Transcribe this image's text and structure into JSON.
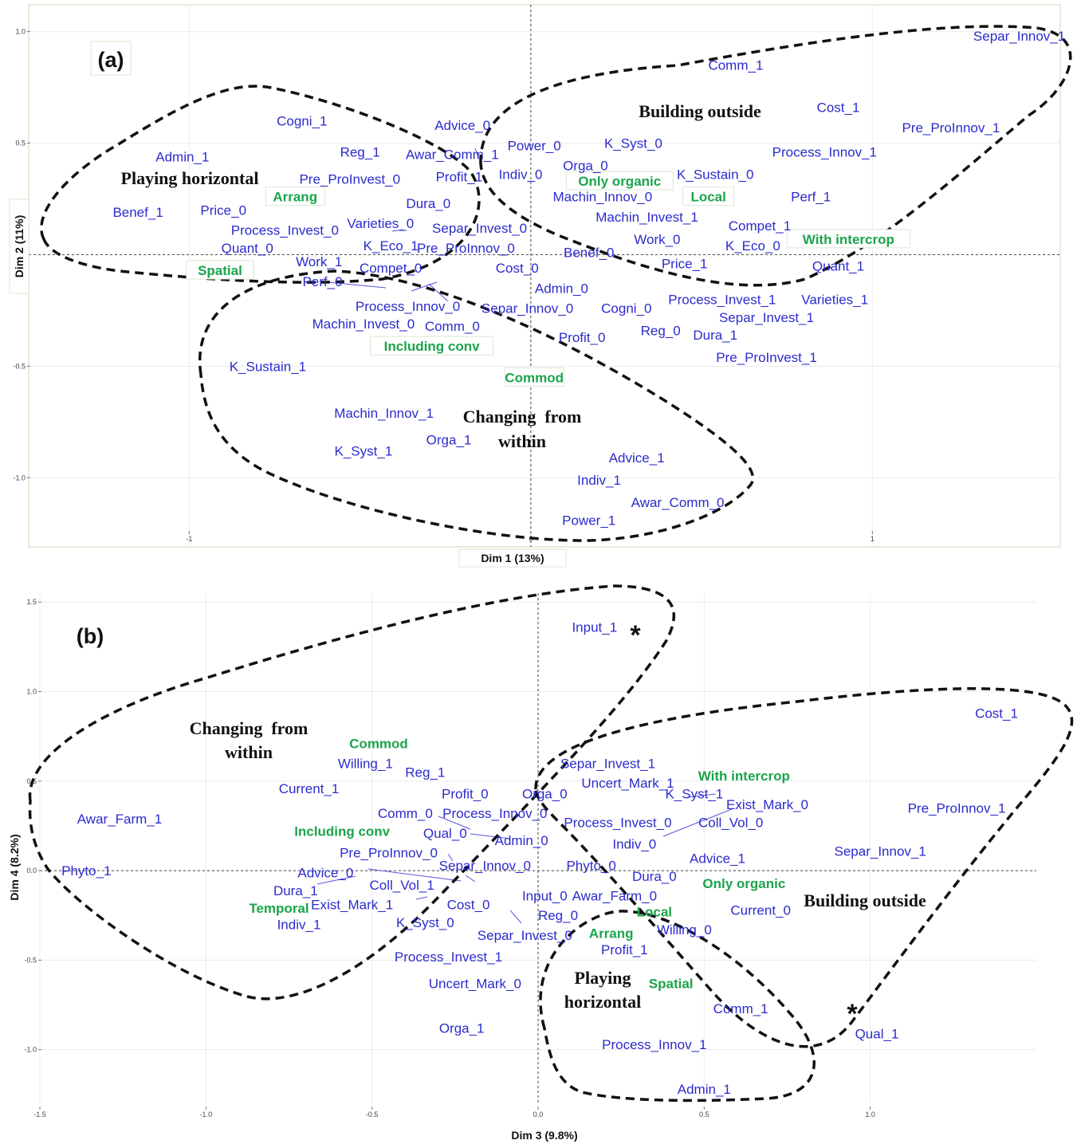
{
  "chart_data": [
    {
      "type": "scatter",
      "panel_label": "(a)",
      "xlabel": "Dim 1 (13%)",
      "ylabel": "Dim 2 (11%)",
      "xlim": [
        -1.47,
        1.55
      ],
      "ylim": [
        -1.31,
        1.12
      ],
      "xticks": [
        {
          "v": -1,
          "label": "-1"
        },
        {
          "v": 0,
          "label": "0"
        },
        {
          "v": 1,
          "label": "1"
        }
      ],
      "yticks": [
        {
          "v": 1.0,
          "label": "1.0"
        },
        {
          "v": 0.5,
          "label": "0.5"
        },
        {
          "v": 0.0,
          "label": "0.0"
        },
        {
          "v": -0.5,
          "label": "-0.5"
        },
        {
          "v": -1.0,
          "label": "-1.0"
        }
      ],
      "grid": true,
      "colors": {
        "active": "#2b2bcc",
        "supplementary": "#1aa44a"
      },
      "active_points": [
        {
          "label": "Separ_Innov_1",
          "x": 1.43,
          "y": 0.98
        },
        {
          "label": "Comm_1",
          "x": 0.6,
          "y": 0.85
        },
        {
          "label": "Cost_1",
          "x": 0.9,
          "y": 0.66
        },
        {
          "label": "Pre_ProInnov_1",
          "x": 1.23,
          "y": 0.57
        },
        {
          "label": "Process_Innov_1",
          "x": 0.86,
          "y": 0.46
        },
        {
          "label": "Cogni_1",
          "x": -0.67,
          "y": 0.6
        },
        {
          "label": "Advice_0",
          "x": -0.2,
          "y": 0.58
        },
        {
          "label": "Power_0",
          "x": 0.01,
          "y": 0.49
        },
        {
          "label": "K_Syst_0",
          "x": 0.3,
          "y": 0.5
        },
        {
          "label": "Admin_1",
          "x": -1.02,
          "y": 0.44
        },
        {
          "label": "Reg_1",
          "x": -0.5,
          "y": 0.46
        },
        {
          "label": "Awar_Comm_1",
          "x": -0.23,
          "y": 0.45
        },
        {
          "label": "Orga_0",
          "x": 0.16,
          "y": 0.4
        },
        {
          "label": "K_Sustain_0",
          "x": 0.54,
          "y": 0.36
        },
        {
          "label": "Pre_ProInvest_0",
          "x": -0.53,
          "y": 0.34
        },
        {
          "label": "Profit_1",
          "x": -0.21,
          "y": 0.35
        },
        {
          "label": "Indiv_0",
          "x": -0.03,
          "y": 0.36
        },
        {
          "label": "Machin_Innov_0",
          "x": 0.21,
          "y": 0.26
        },
        {
          "label": "Perf_1",
          "x": 0.82,
          "y": 0.26
        },
        {
          "label": "Dura_0",
          "x": -0.3,
          "y": 0.23
        },
        {
          "label": "Benef_1",
          "x": -1.15,
          "y": 0.19
        },
        {
          "label": "Price_0",
          "x": -0.9,
          "y": 0.2
        },
        {
          "label": "Machin_Invest_1",
          "x": 0.34,
          "y": 0.17
        },
        {
          "label": "Varieties_0",
          "x": -0.44,
          "y": 0.14
        },
        {
          "label": "Separ_Invest_0",
          "x": -0.15,
          "y": 0.12
        },
        {
          "label": "Compet_1",
          "x": 0.67,
          "y": 0.13
        },
        {
          "label": "Process_Invest_0",
          "x": -0.72,
          "y": 0.11
        },
        {
          "label": "Work_0",
          "x": 0.37,
          "y": 0.07
        },
        {
          "label": "K_Eco_1",
          "x": -0.41,
          "y": 0.04
        },
        {
          "label": "Pre_ProInnov_0",
          "x": -0.19,
          "y": 0.03
        },
        {
          "label": "K_Eco_0",
          "x": 0.65,
          "y": 0.04
        },
        {
          "label": "Benef_0",
          "x": 0.17,
          "y": 0.01
        },
        {
          "label": "Quant_0",
          "x": -0.83,
          "y": 0.03
        },
        {
          "label": "Work_1",
          "x": -0.62,
          "y": -0.03
        },
        {
          "label": "Price_1",
          "x": 0.45,
          "y": -0.04
        },
        {
          "label": "Quant_1",
          "x": 0.9,
          "y": -0.05
        },
        {
          "label": "Compet_0",
          "x": -0.41,
          "y": -0.06
        },
        {
          "label": "Cost_0",
          "x": -0.04,
          "y": -0.06
        },
        {
          "label": "Perf_0",
          "x": -0.61,
          "y": -0.12
        },
        {
          "label": "Admin_0",
          "x": 0.09,
          "y": -0.15
        },
        {
          "label": "Process_Invest_1",
          "x": 0.56,
          "y": -0.2
        },
        {
          "label": "Varieties_1",
          "x": 0.89,
          "y": -0.2
        },
        {
          "label": "Process_Innov_0",
          "x": -0.36,
          "y": -0.23
        },
        {
          "label": "Separ_Innov_0",
          "x": -0.01,
          "y": -0.24
        },
        {
          "label": "Cogni_0",
          "x": 0.28,
          "y": -0.24
        },
        {
          "label": "Separ_Invest_1",
          "x": 0.69,
          "y": -0.28
        },
        {
          "label": "Machin_Invest_0",
          "x": -0.49,
          "y": -0.31
        },
        {
          "label": "Comm_0",
          "x": -0.23,
          "y": -0.32
        },
        {
          "label": "Reg_0",
          "x": 0.38,
          "y": -0.34
        },
        {
          "label": "Dura_1",
          "x": 0.54,
          "y": -0.36
        },
        {
          "label": "Profit_0",
          "x": 0.15,
          "y": -0.37
        },
        {
          "label": "Pre_ProInvest_1",
          "x": 0.69,
          "y": -0.46
        },
        {
          "label": "K_Sustain_1",
          "x": -0.77,
          "y": -0.5
        },
        {
          "label": "Machin_Innov_1",
          "x": -0.43,
          "y": -0.71
        },
        {
          "label": "Orga_1",
          "x": -0.24,
          "y": -0.83
        },
        {
          "label": "K_Syst_1",
          "x": -0.49,
          "y": -0.88
        },
        {
          "label": "Advice_1",
          "x": 0.31,
          "y": -0.91
        },
        {
          "label": "Indiv_1",
          "x": 0.2,
          "y": -1.01
        },
        {
          "label": "Awar_Comm_0",
          "x": 0.43,
          "y": -1.11
        },
        {
          "label": "Power_1",
          "x": 0.17,
          "y": -1.19
        }
      ],
      "supplementary_points": [
        {
          "label": "Arrang",
          "x": -0.69,
          "y": 0.26
        },
        {
          "label": "Spatial",
          "x": -0.91,
          "y": -0.07
        },
        {
          "label": "Only organic",
          "x": 0.26,
          "y": 0.33
        },
        {
          "label": "Local",
          "x": 0.52,
          "y": 0.26
        },
        {
          "label": "With intercrop",
          "x": 0.93,
          "y": 0.07
        },
        {
          "label": "Including conv",
          "x": -0.29,
          "y": -0.41
        },
        {
          "label": "Commod",
          "x": 0.01,
          "y": -0.55
        }
      ],
      "group_labels": [
        {
          "text": "Building outside",
          "lines": [
            "Building outside"
          ]
        },
        {
          "text": "Playing horizontal",
          "lines": [
            "Playing horizontal"
          ]
        },
        {
          "text": "Changing  from within",
          "lines": [
            "Changing  from",
            "within"
          ]
        }
      ]
    },
    {
      "type": "scatter",
      "panel_label": "(b)",
      "xlabel": "Dim 3 (9.8%)",
      "ylabel": "Dim 4 (8.2%)",
      "xlim": [
        -1.5,
        1.5
      ],
      "ylim": [
        -1.3,
        1.55
      ],
      "xticks": [
        {
          "v": -1.5,
          "label": "-1.5"
        },
        {
          "v": -1.0,
          "label": "-1.0"
        },
        {
          "v": -0.5,
          "label": "-0.5"
        },
        {
          "v": 0.0,
          "label": "0.0"
        },
        {
          "v": 0.5,
          "label": "0.5"
        },
        {
          "v": 1.0,
          "label": "1.0"
        }
      ],
      "yticks": [
        {
          "v": 1.5,
          "label": "1.5"
        },
        {
          "v": 1.0,
          "label": "1.0"
        },
        {
          "v": 0.5,
          "label": "0.5"
        },
        {
          "v": 0.0,
          "label": "0.0"
        },
        {
          "v": -0.5,
          "label": "-0.5"
        },
        {
          "v": -1.0,
          "label": "-1.0"
        }
      ],
      "grid": true,
      "colors": {
        "active": "#2b2bcc",
        "supplementary": "#1aa44a"
      },
      "active_points": [
        {
          "label": "Input_1",
          "x": 0.17,
          "y": 1.36
        },
        {
          "label": "Cost_1",
          "x": 1.38,
          "y": 0.88
        },
        {
          "label": "Willing_1",
          "x": -0.52,
          "y": 0.6
        },
        {
          "label": "Reg_1",
          "x": -0.34,
          "y": 0.55
        },
        {
          "label": "Separ_Invest_1",
          "x": 0.21,
          "y": 0.6
        },
        {
          "label": "Uncert_Mark_1",
          "x": 0.27,
          "y": 0.49
        },
        {
          "label": "K_Syst_1",
          "x": 0.47,
          "y": 0.43
        },
        {
          "label": "Current_1",
          "x": -0.69,
          "y": 0.46
        },
        {
          "label": "Profit_0",
          "x": -0.22,
          "y": 0.43
        },
        {
          "label": "Orga_0",
          "x": 0.02,
          "y": 0.43
        },
        {
          "label": "Exist_Mark_0",
          "x": 0.69,
          "y": 0.37
        },
        {
          "label": "Pre_ProInnov_1",
          "x": 1.26,
          "y": 0.35
        },
        {
          "label": "Awar_Farm_1",
          "x": -1.26,
          "y": 0.29
        },
        {
          "label": "Comm_0",
          "x": -0.4,
          "y": 0.32
        },
        {
          "label": "Process_Innov_0",
          "x": -0.13,
          "y": 0.32
        },
        {
          "label": "Process_Invest_0",
          "x": 0.24,
          "y": 0.27
        },
        {
          "label": "Coll_Vol_0",
          "x": 0.58,
          "y": 0.27
        },
        {
          "label": "Qual_0",
          "x": -0.28,
          "y": 0.21
        },
        {
          "label": "Admin_0",
          "x": -0.05,
          "y": 0.17
        },
        {
          "label": "Indiv_0",
          "x": 0.29,
          "y": 0.15
        },
        {
          "label": "Separ_Innov_1",
          "x": 1.03,
          "y": 0.11
        },
        {
          "label": "Pre_ProInnov_0",
          "x": -0.45,
          "y": 0.1
        },
        {
          "label": "Advice_1",
          "x": 0.54,
          "y": 0.07
        },
        {
          "label": "Separ_Innov_0",
          "x": -0.16,
          "y": 0.03
        },
        {
          "label": "Phyto_0",
          "x": 0.16,
          "y": 0.03
        },
        {
          "label": "Phyto_1",
          "x": -1.36,
          "y": 0.0
        },
        {
          "label": "Advice_0",
          "x": -0.64,
          "y": -0.01
        },
        {
          "label": "Dura_0",
          "x": 0.35,
          "y": -0.03
        },
        {
          "label": "Coll_Vol_1",
          "x": -0.41,
          "y": -0.08
        },
        {
          "label": "Dura_1",
          "x": -0.73,
          "y": -0.11
        },
        {
          "label": "Input_0",
          "x": 0.02,
          "y": -0.14
        },
        {
          "label": "Awar_Farm_0",
          "x": 0.23,
          "y": -0.14
        },
        {
          "label": "Exist_Mark_1",
          "x": -0.56,
          "y": -0.19
        },
        {
          "label": "Cost_0",
          "x": -0.21,
          "y": -0.19
        },
        {
          "label": "Current_0",
          "x": 0.67,
          "y": -0.22
        },
        {
          "label": "Indiv_1",
          "x": -0.72,
          "y": -0.3
        },
        {
          "label": "Reg_0",
          "x": 0.06,
          "y": -0.25
        },
        {
          "label": "K_Syst_0",
          "x": -0.34,
          "y": -0.29
        },
        {
          "label": "Separ_Invest_0",
          "x": -0.04,
          "y": -0.36
        },
        {
          "label": "Willing_0",
          "x": 0.44,
          "y": -0.33
        },
        {
          "label": "Profit_1",
          "x": 0.26,
          "y": -0.44
        },
        {
          "label": "Process_Invest_1",
          "x": -0.27,
          "y": -0.48
        },
        {
          "label": "Uncert_Mark_0",
          "x": -0.19,
          "y": -0.63
        },
        {
          "label": "Comm_1",
          "x": 0.61,
          "y": -0.77
        },
        {
          "label": "Orga_1",
          "x": -0.23,
          "y": -0.88
        },
        {
          "label": "Qual_1",
          "x": 1.02,
          "y": -0.91
        },
        {
          "label": "Process_Innov_1",
          "x": 0.35,
          "y": -0.97
        },
        {
          "label": "Admin_1",
          "x": 0.5,
          "y": -1.22
        }
      ],
      "supplementary_points": [
        {
          "label": "Commod",
          "x": -0.48,
          "y": 0.71
        },
        {
          "label": "With intercrop",
          "x": 0.62,
          "y": 0.53
        },
        {
          "label": "Including conv",
          "x": -0.59,
          "y": 0.22
        },
        {
          "label": "Only organic",
          "x": 0.62,
          "y": -0.07
        },
        {
          "label": "Temporal",
          "x": -0.78,
          "y": -0.21
        },
        {
          "label": "Local",
          "x": 0.35,
          "y": -0.23
        },
        {
          "label": "Arrang",
          "x": 0.22,
          "y": -0.35
        },
        {
          "label": "Spatial",
          "x": 0.4,
          "y": -0.63
        }
      ],
      "group_labels": [
        {
          "text": "Changing  from within",
          "lines": [
            "Changing  from",
            "within"
          ]
        },
        {
          "text": "Building outside",
          "lines": [
            "Building outside"
          ]
        },
        {
          "text": "Playing horizontal",
          "lines": [
            "Playing",
            "horizontal"
          ]
        }
      ],
      "star_markers": [
        "*",
        "*"
      ]
    }
  ]
}
